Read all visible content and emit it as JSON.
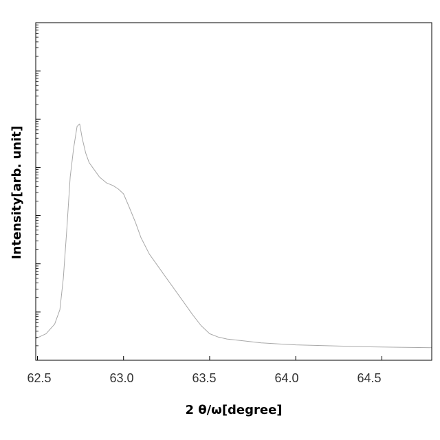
{
  "chart_data": {
    "type": "line",
    "title": "",
    "xlabel": "2 θ/ω[degree]",
    "ylabel": "Intensity[arb. unit]",
    "x_tick_labels": [
      "62.5",
      "63.0",
      "63.5",
      "64.0",
      "64.5"
    ],
    "x_ticks": [
      62.5,
      63.0,
      63.5,
      64.0,
      64.5
    ],
    "xlim": [
      62.49,
      64.79
    ],
    "ylim": [
      0,
      7
    ],
    "y_tick_labels_shown": false,
    "grid": false,
    "legend": "none",
    "line_color": "#a8a8a8",
    "series": [
      {
        "x": [
          62.49,
          62.55,
          62.6,
          62.63,
          62.65,
          62.67,
          62.69,
          62.71,
          62.73,
          62.745,
          62.76,
          62.78,
          62.8,
          62.83,
          62.86,
          62.9,
          62.94,
          62.97,
          63.0,
          63.03,
          63.07,
          63.1,
          63.15,
          63.2,
          63.25,
          63.3,
          63.35,
          63.4,
          63.45,
          63.5,
          63.55,
          63.6,
          63.7,
          63.8,
          63.9,
          64.0,
          64.2,
          64.4,
          64.6,
          64.79
        ],
        "y": [
          0.45,
          0.55,
          0.75,
          1.05,
          1.7,
          2.7,
          3.8,
          4.4,
          4.85,
          4.9,
          4.6,
          4.3,
          4.1,
          3.95,
          3.8,
          3.68,
          3.62,
          3.55,
          3.45,
          3.2,
          2.85,
          2.55,
          2.2,
          1.95,
          1.7,
          1.45,
          1.2,
          0.95,
          0.72,
          0.55,
          0.48,
          0.44,
          0.4,
          0.36,
          0.34,
          0.32,
          0.3,
          0.28,
          0.27,
          0.26
        ]
      }
    ]
  }
}
